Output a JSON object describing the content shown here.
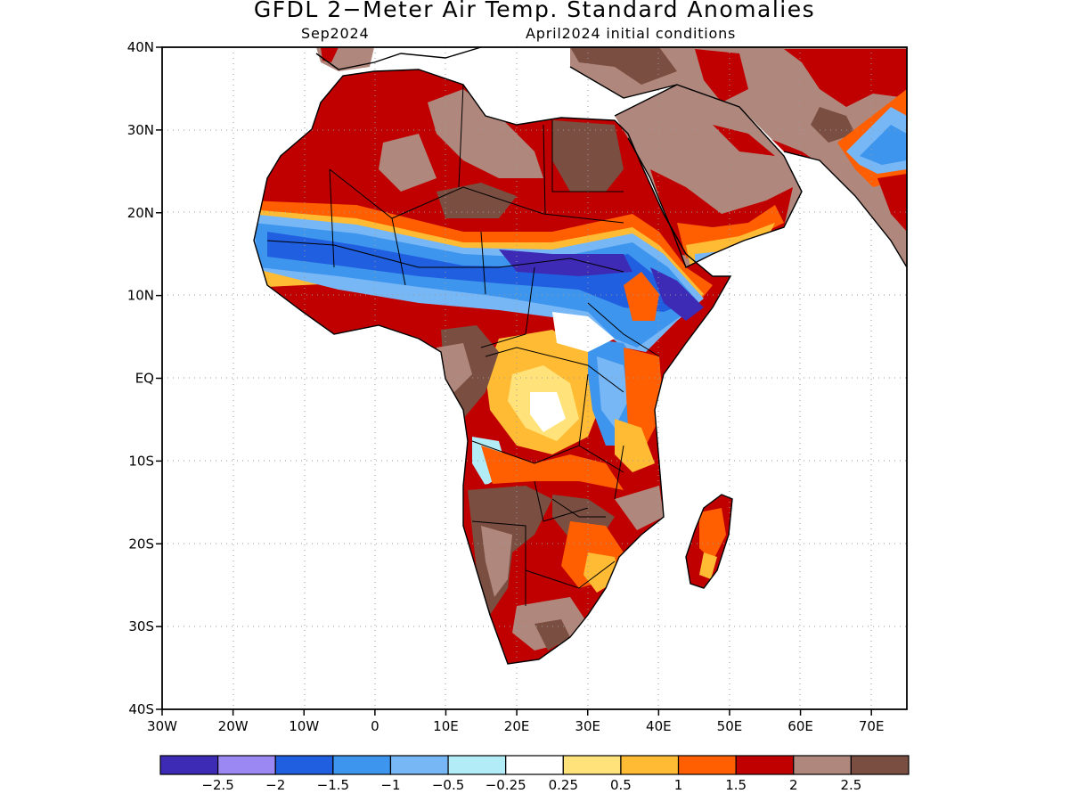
{
  "header": {
    "title": "GFDL 2−Meter Air Temp. Standard Anomalies",
    "valid_month": "Sep2024",
    "init": "April2024 initial conditions"
  },
  "axes": {
    "lon_ticks": [
      "30W",
      "20W",
      "10W",
      "0",
      "10E",
      "20E",
      "30E",
      "40E",
      "50E",
      "60E",
      "70E"
    ],
    "lat_ticks": [
      "40N",
      "30N",
      "20N",
      "10N",
      "EQ",
      "10S",
      "20S",
      "30S",
      "40S"
    ],
    "lon_range": [
      -30,
      75
    ],
    "lat_range": [
      -40,
      40
    ],
    "grid": "dotted"
  },
  "legend": {
    "labels": [
      "−2.5",
      "−2",
      "−1.5",
      "−1",
      "−0.5",
      "−0.25",
      "0.25",
      "0.5",
      "1",
      "1.5",
      "2",
      "2.5"
    ],
    "colors": [
      "#3d2bb5",
      "#9b88f2",
      "#1f5fe0",
      "#3d95ee",
      "#78b7f5",
      "#b2ecf7",
      "#ffffff",
      "#ffe37a",
      "#ffbb33",
      "#ff5f00",
      "#c00000",
      "#b0877c",
      "#7a4e40"
    ]
  }
}
